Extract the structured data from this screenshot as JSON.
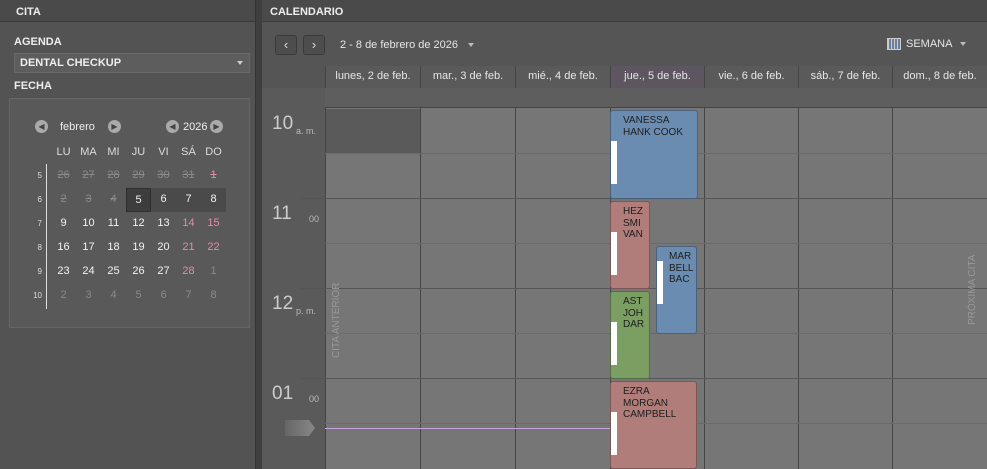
{
  "left": {
    "title": "CITA",
    "agenda_label": "AGENDA",
    "agenda_value": "DENTAL CHECKUP",
    "fecha_label": "FECHA",
    "mini": {
      "month": "febrero",
      "year": "2026",
      "dows": [
        "LU",
        "MA",
        "MI",
        "JU",
        "VI",
        "SÁ",
        "DO"
      ],
      "weeks": [
        {
          "num": "5",
          "days": [
            "26",
            "27",
            "28",
            "29",
            "30",
            "31",
            "1"
          ]
        },
        {
          "num": "6",
          "days": [
            "2",
            "3",
            "4",
            "5",
            "6",
            "7",
            "8"
          ]
        },
        {
          "num": "7",
          "days": [
            "9",
            "10",
            "11",
            "12",
            "13",
            "14",
            "15"
          ]
        },
        {
          "num": "8",
          "days": [
            "16",
            "17",
            "18",
            "19",
            "20",
            "21",
            "22"
          ]
        },
        {
          "num": "9",
          "days": [
            "23",
            "24",
            "25",
            "26",
            "27",
            "28",
            "1"
          ]
        },
        {
          "num": "10",
          "days": [
            "2",
            "3",
            "4",
            "5",
            "6",
            "7",
            "8"
          ]
        }
      ],
      "selected": "5"
    }
  },
  "right": {
    "title": "CALENDARIO",
    "range": "2 - 8 de febrero de 2026",
    "view": "SEMANA",
    "prev": "‹",
    "next": "›",
    "days": [
      "lunes, 2 de feb.",
      "mar., 3 de feb.",
      "mié., 4 de feb.",
      "jue., 5 de feb.",
      "vie., 6 de feb.",
      "sáb., 7 de feb.",
      "dom., 8 de feb."
    ],
    "hours": [
      {
        "h": "10",
        "sub": "a. m."
      },
      {
        "h": "11",
        "sub": "00"
      },
      {
        "h": "12",
        "sub": "p. m."
      },
      {
        "h": "01",
        "sub": "00"
      }
    ],
    "prev_label": "CITA ANTERIOR",
    "next_label": "PRÓXIMA CITA",
    "events": [
      {
        "lines": [
          "VANESSA",
          "HANK COOK"
        ],
        "color": "#6b8cb1"
      },
      {
        "lines": [
          "HEZ",
          "SMI",
          "VAN"
        ],
        "color": "#b07d7a"
      },
      {
        "lines": [
          "MAR",
          "BELL",
          "BAC"
        ],
        "color": "#6b8cb1"
      },
      {
        "lines": [
          "AST",
          "JOH",
          "DAR"
        ],
        "color": "#7b9e62"
      },
      {
        "lines": [
          "EZRA",
          "MORGAN",
          "CAMPBELL"
        ],
        "color": "#b07d7a"
      }
    ],
    "now_line_color": "#c9a0e0"
  }
}
